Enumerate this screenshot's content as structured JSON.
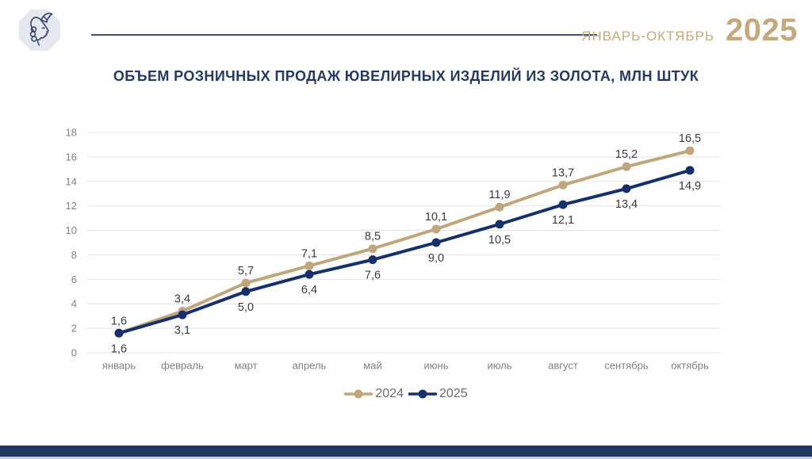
{
  "header": {
    "period_label": "ЯНВАРЬ-ОКТЯБРЬ",
    "year": "2025",
    "logo": "woman-profile-assay-emblem"
  },
  "title": "ОБЪЕМ РОЗНИЧНЫХ ПРОДАЖ ЮВЕЛИРНЫХ ИЗДЕЛИЙ ИЗ ЗОЛОТА, МЛН ШТУК",
  "chart_data": {
    "type": "line",
    "categories": [
      "январь",
      "февраль",
      "март",
      "апрель",
      "май",
      "июнь",
      "июль",
      "август",
      "сентябрь",
      "октябрь"
    ],
    "series": [
      {
        "name": "2024",
        "color": "#BFA67C",
        "values": [
          1.6,
          3.4,
          5.7,
          7.1,
          8.5,
          10.1,
          11.9,
          13.7,
          15.2,
          16.5
        ],
        "labels": [
          "1,6",
          "3,4",
          "5,7",
          "7,1",
          "8,5",
          "10,1",
          "11,9",
          "13,7",
          "15,2",
          "16,5"
        ],
        "label_position": "above"
      },
      {
        "name": "2025",
        "color": "#17306B",
        "values": [
          1.6,
          3.1,
          5.0,
          6.4,
          7.6,
          9.0,
          10.5,
          12.1,
          13.4,
          14.9
        ],
        "labels": [
          "1,6",
          "3,1",
          "5,0",
          "6,4",
          "7,6",
          "9,0",
          "10,5",
          "12,1",
          "13,4",
          "14,9"
        ],
        "label_position": "below"
      }
    ],
    "ylim": [
      0,
      18
    ],
    "ytick_step": 2,
    "yticks": [
      0,
      2,
      4,
      6,
      8,
      10,
      12,
      14,
      16,
      18
    ],
    "grid": true,
    "legend_position": "bottom"
  },
  "colors": {
    "gold": "#BFA67C",
    "navy": "#17306B",
    "title_text": "#253A60",
    "header_gold": "#C4A87E",
    "header_rule": "#3D5186",
    "grid": "#E3E3E3",
    "axis_text": "#7F7F7F",
    "label_text": "#3A3A3A",
    "legend_text": "#6A6A6A",
    "footer_bar": "#1F3864",
    "footer_strip": "#C8CBDA",
    "badge_fill": "#E6E8F0",
    "badge_stroke": "#2F4060"
  }
}
